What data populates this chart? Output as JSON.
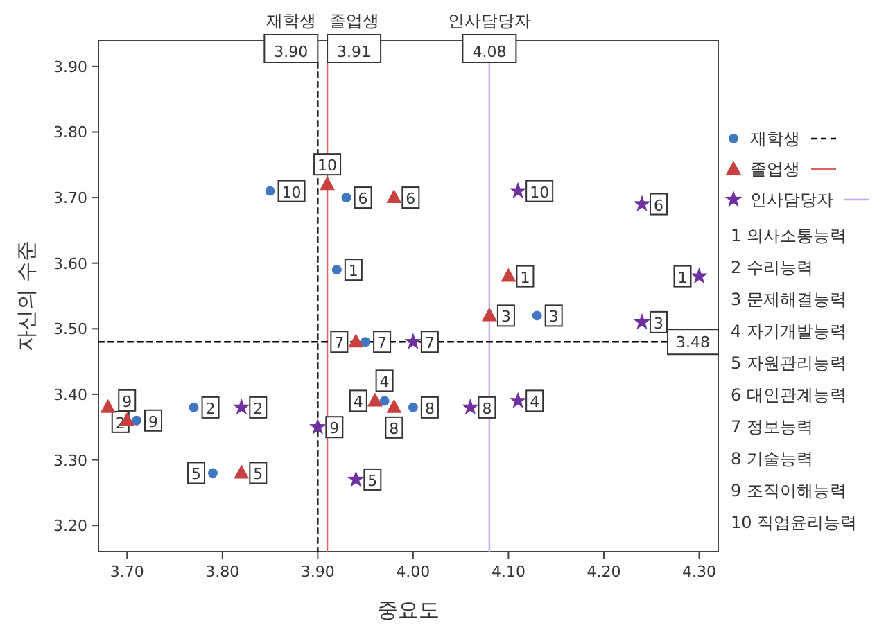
{
  "chart_data": {
    "type": "scatter",
    "xlabel": "중요도",
    "ylabel": "자신의 수준",
    "xlim": [
      3.67,
      4.32
    ],
    "ylim": [
      3.16,
      3.94
    ],
    "xticks": [
      {
        "value": 3.7,
        "label": "3.70"
      },
      {
        "value": 3.8,
        "label": "3.80"
      },
      {
        "value": 3.9,
        "label": "3.90"
      },
      {
        "value": 4.0,
        "label": "4.00"
      },
      {
        "value": 4.1,
        "label": "4.10"
      },
      {
        "value": 4.2,
        "label": "4.20"
      },
      {
        "value": 4.3,
        "label": "4.30"
      }
    ],
    "yticks": [
      {
        "value": 3.2,
        "label": "3.20"
      },
      {
        "value": 3.3,
        "label": "3.30"
      },
      {
        "value": 3.4,
        "label": "3.40"
      },
      {
        "value": 3.5,
        "label": "3.50"
      },
      {
        "value": 3.6,
        "label": "3.60"
      },
      {
        "value": 3.7,
        "label": "3.70"
      },
      {
        "value": 3.8,
        "label": "3.80"
      },
      {
        "value": 3.9,
        "label": "3.90"
      }
    ],
    "legend": "right",
    "series": [
      {
        "name": "재학생",
        "color": "#3f78c0",
        "marker": "circle",
        "x": [
          3.92,
          3.77,
          4.13,
          3.97,
          3.79,
          3.93,
          3.95,
          4.0,
          3.71,
          3.85
        ],
        "values": [
          3.59,
          3.38,
          3.52,
          3.39,
          3.28,
          3.7,
          3.48,
          3.38,
          3.36,
          3.71
        ]
      },
      {
        "name": "졸업생",
        "color": "#c84040",
        "marker": "triangle",
        "x": [
          4.1,
          3.68,
          4.08,
          3.96,
          3.82,
          3.98,
          3.94,
          3.98,
          3.7,
          3.91
        ],
        "values": [
          3.58,
          3.38,
          3.52,
          3.39,
          3.28,
          3.7,
          3.48,
          3.38,
          3.36,
          3.72
        ]
      },
      {
        "name": "인사담당자",
        "color": "#7030a0",
        "marker": "star",
        "x": [
          4.3,
          3.82,
          4.24,
          4.11,
          3.94,
          4.24,
          4.0,
          4.06,
          3.9,
          4.11
        ],
        "values": [
          3.58,
          3.38,
          3.51,
          3.39,
          3.27,
          3.69,
          3.48,
          3.38,
          3.35,
          3.71
        ]
      }
    ],
    "ref_lines": [
      {
        "axis": "x",
        "value": 3.9,
        "label": "3.90",
        "color": "#000000",
        "line_style": "dashed"
      },
      {
        "axis": "x",
        "value": 3.91,
        "label": "3.91",
        "color": "#e06060",
        "line_style": "solid"
      },
      {
        "axis": "x",
        "value": 4.08,
        "label": "4.08",
        "color": "#c8a8e8",
        "line_style": "solid"
      },
      {
        "axis": "y",
        "value": 3.48,
        "label": "3.48",
        "color": "#000000",
        "line_style": "dashed"
      }
    ],
    "annotations": [
      "재학생",
      "졸업생",
      "인사담당자",
      "1   의사소통능력",
      "2   수리능력",
      "3   문제해결능력",
      "4   자기개발능력",
      "5   자원관리능력",
      "6   대인관계능력",
      "7   정보능력",
      "8   기술능력",
      "9   조직이해능력",
      "10 직업윤리능력",
      {
        "text": "1",
        "x": 3.92,
        "y": 3.59
      },
      {
        "text": "2",
        "x": 3.77,
        "y": 3.38
      },
      {
        "text": "3",
        "x": 4.13,
        "y": 3.52
      },
      {
        "text": "4",
        "x": 3.97,
        "y": 3.39
      },
      {
        "text": "5",
        "x": 3.79,
        "y": 3.28
      },
      {
        "text": "6",
        "x": 3.93,
        "y": 3.7
      },
      {
        "text": "7",
        "x": 3.95,
        "y": 3.48
      },
      {
        "text": "8",
        "x": 4.0,
        "y": 3.38
      },
      {
        "text": "9",
        "x": 3.71,
        "y": 3.36
      },
      {
        "text": "10",
        "x": 3.85,
        "y": 3.71
      },
      {
        "text": "1",
        "x": 4.1,
        "y": 3.58
      },
      {
        "text": "2",
        "x": 3.68,
        "y": 3.38
      },
      {
        "text": "3",
        "x": 4.08,
        "y": 3.52
      },
      {
        "text": "4",
        "x": 3.96,
        "y": 3.39
      },
      {
        "text": "5",
        "x": 3.82,
        "y": 3.28
      },
      {
        "text": "6",
        "x": 3.98,
        "y": 3.7
      },
      {
        "text": "7",
        "x": 3.94,
        "y": 3.48
      },
      {
        "text": "8",
        "x": 3.98,
        "y": 3.38
      },
      {
        "text": "9",
        "x": 3.7,
        "y": 3.36
      },
      {
        "text": "10",
        "x": 3.91,
        "y": 3.72
      },
      {
        "text": "1",
        "x": 4.3,
        "y": 3.58
      },
      {
        "text": "2",
        "x": 3.82,
        "y": 3.38
      },
      {
        "text": "3",
        "x": 4.24,
        "y": 3.51
      },
      {
        "text": "4",
        "x": 4.11,
        "y": 3.39
      },
      {
        "text": "5",
        "x": 3.94,
        "y": 3.27
      },
      {
        "text": "6",
        "x": 4.24,
        "y": 3.69
      },
      {
        "text": "7",
        "x": 4.0,
        "y": 3.48
      },
      {
        "text": "8",
        "x": 4.06,
        "y": 3.38
      },
      {
        "text": "9",
        "x": 3.9,
        "y": 3.35
      },
      {
        "text": "10",
        "x": 4.11,
        "y": 3.71
      }
    ]
  }
}
